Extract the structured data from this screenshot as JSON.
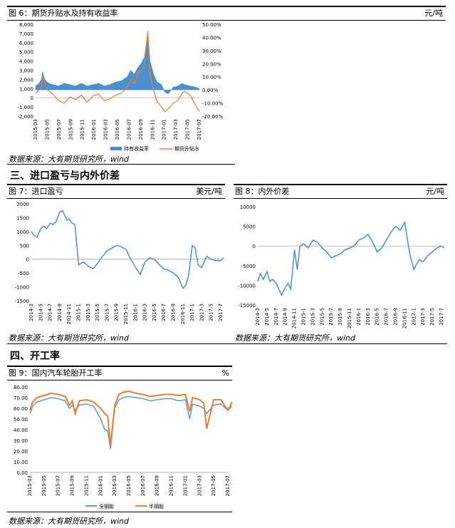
{
  "figure6": {
    "title": "图 6：期货升贴水及持有收益率",
    "unit": "元/吨",
    "source": "数据来源：大有期货研究所，wind",
    "chart_data": {
      "type": "area+line",
      "x_ticks": [
        "2015-03",
        "2015-05",
        "2015-07",
        "2015-09",
        "2015-11",
        "2016-01",
        "2016-03",
        "2016-05",
        "2016-07",
        "2016-09",
        "2016-11",
        "2017-01",
        "2017-03",
        "2017-05",
        "2017-07"
      ],
      "left_axis": {
        "ticks": [
          "8,000",
          "7,000",
          "6,000",
          "5,000",
          "4,000",
          "3,000",
          "2,000",
          "1,000",
          "0",
          "-1,000",
          "-2,000"
        ],
        "min": -2000,
        "max": 8000
      },
      "right_axis": {
        "ticks": [
          "50.00%",
          "40.00%",
          "30.00%",
          "20.00%",
          "10.00%",
          "0.00%",
          "-10.00%",
          "-20.00%"
        ],
        "min": -20,
        "max": 50
      },
      "series": [
        {
          "name": "持有收益率",
          "axis": "right",
          "color": "#4a90d0",
          "x": [
            0,
            0.3,
            0.5,
            0.6,
            0.8,
            1,
            1.2,
            1.5,
            2,
            2.5,
            3,
            3.5,
            4,
            4.5,
            5,
            5.5,
            6,
            6.5,
            7,
            7.5,
            8,
            8.3,
            8.6,
            9,
            9.2,
            9.5,
            9.8,
            10,
            10.3,
            10.6,
            11,
            11.3,
            11.6,
            12,
            12.4,
            12.8,
            13,
            13.5,
            14,
            14.3
          ],
          "values": [
            3,
            5,
            8,
            14,
            8,
            6,
            5,
            4,
            3,
            5,
            4,
            3,
            5,
            3,
            4,
            5,
            3,
            4,
            6,
            7,
            10,
            15,
            12,
            18,
            20,
            25,
            45,
            22,
            12,
            6,
            4,
            -2,
            -3,
            2,
            3,
            5,
            4,
            3,
            2,
            1
          ]
        },
        {
          "name": "期货升贴水",
          "axis": "left",
          "color": "#ed7d31",
          "x": [
            0,
            0.3,
            0.5,
            0.6,
            0.8,
            1,
            1.2,
            1.5,
            2,
            2.5,
            3,
            3.5,
            4,
            4.5,
            5,
            5.5,
            6,
            6.5,
            7,
            7.5,
            8,
            8.3,
            8.6,
            9,
            9.2,
            9.5,
            9.8,
            10,
            10.3,
            10.6,
            11,
            11.3,
            11.6,
            12,
            12.4,
            12.8,
            13,
            13.5,
            14,
            14.3
          ],
          "values": [
            500,
            800,
            1200,
            2500,
            1500,
            900,
            700,
            400,
            -300,
            -600,
            100,
            -200,
            300,
            -500,
            200,
            400,
            -300,
            -100,
            300,
            500,
            1200,
            2000,
            1500,
            2800,
            3000,
            3500,
            7200,
            2500,
            800,
            -400,
            -1000,
            -1500,
            -1200,
            -600,
            -300,
            500,
            700,
            300,
            -900,
            -1500
          ]
        }
      ]
    }
  },
  "section3": {
    "title": "三、进口盈亏与内外价差"
  },
  "figure7": {
    "title": "图 7：进口盈亏",
    "unit": "美元/吨",
    "source": "数据来源：大有期货研究所，wind",
    "chart_data": {
      "type": "line",
      "x_ticks": [
        "2014-3",
        "2014-5",
        "2014-7",
        "2014-9",
        "2014-11",
        "2015-1",
        "2015-3",
        "2015-5",
        "2015-7",
        "2015-9",
        "2015-11",
        "2016-1",
        "2016-3",
        "2016-5",
        "2016-7",
        "2016-9",
        "2016-11",
        "2017-1",
        "2017-3",
        "2017-5",
        "2017-7"
      ],
      "y_ticks": [
        "2000",
        "1500",
        "1000",
        "500",
        "0",
        "-500",
        "-1000",
        "-1500"
      ],
      "ylim": [
        -1500,
        2000
      ],
      "series": [
        {
          "color": "#4a90d0",
          "x": [
            0,
            0.3,
            0.6,
            1,
            1.3,
            1.6,
            2,
            2.3,
            2.6,
            3,
            3.3,
            3.5,
            3.8,
            4,
            4.3,
            4.6,
            5,
            5.5,
            6,
            6.5,
            7,
            7.5,
            8,
            8.5,
            9,
            9.5,
            10,
            10.5,
            11,
            11.5,
            12,
            12.5,
            13,
            13.5,
            14,
            14.5,
            15,
            15.5,
            16,
            16.3,
            16.6,
            17,
            17.3,
            17.6,
            18,
            18.5,
            19,
            19.5,
            20,
            20.3
          ],
          "values": [
            1000,
            850,
            800,
            1100,
            1200,
            1100,
            1300,
            1250,
            1350,
            1700,
            1750,
            1600,
            1400,
            1450,
            1300,
            1250,
            -200,
            -100,
            -250,
            -350,
            -150,
            100,
            300,
            400,
            500,
            450,
            350,
            0,
            -300,
            -550,
            -100,
            50,
            0,
            -200,
            -350,
            -400,
            -500,
            -650,
            -1050,
            -950,
            -600,
            500,
            400,
            -200,
            -300,
            100,
            0,
            -50,
            -50,
            50
          ]
        }
      ]
    }
  },
  "figure8": {
    "title": "图 8：内外价差",
    "unit": "元/吨",
    "source": "数据来源：大有期货研究所，wind",
    "chart_data": {
      "type": "line",
      "x_ticks": [
        "2014-3",
        "2014-5",
        "2014-7",
        "2014-9",
        "2014-11",
        "2015-1",
        "2015-3",
        "2015-5",
        "2015-7",
        "2015-9",
        "2015-11",
        "2016-1",
        "2016-3",
        "2016-5",
        "2016-7",
        "2016-9",
        "2016-11",
        "2017-1",
        "2017-3",
        "2017-5",
        "2017-7"
      ],
      "y_ticks": [
        "10000",
        "5000",
        "0",
        "-5000",
        "-10000",
        "-15000"
      ],
      "ylim": [
        -15000,
        10000
      ],
      "series": [
        {
          "color": "#4a90d0",
          "x": [
            0,
            0.3,
            0.6,
            1,
            1.3,
            1.6,
            2,
            2.3,
            2.6,
            3,
            3.3,
            3.6,
            4,
            4.3,
            4.6,
            5,
            5.5,
            6,
            6.5,
            7,
            7.5,
            8,
            8.5,
            9,
            9.5,
            10,
            10.5,
            11,
            11.5,
            12,
            12.5,
            13,
            13.5,
            14,
            14.5,
            15,
            15.5,
            16,
            16.3,
            16.6,
            17,
            17.3,
            17.6,
            18,
            18.5,
            19,
            19.5,
            20,
            20.3
          ],
          "values": [
            -9000,
            -7000,
            -8500,
            -6500,
            -9000,
            -8500,
            -9500,
            -11000,
            -12500,
            -10500,
            -9500,
            -11000,
            -1000,
            -6000,
            0,
            500,
            -500,
            1500,
            1000,
            -500,
            -1500,
            -3000,
            -2500,
            -2000,
            -1000,
            -500,
            0,
            1500,
            2000,
            3000,
            1000,
            -1500,
            -500,
            1500,
            3500,
            5000,
            4000,
            6000,
            1500,
            -2500,
            -6000,
            -4500,
            -3500,
            -4000,
            -2500,
            -1500,
            -500,
            0,
            -500
          ]
        }
      ]
    }
  },
  "section4": {
    "title": "四、开工率"
  },
  "figure9": {
    "title": "图 9：国内汽车轮胎开工率",
    "unit": "%",
    "source": "数据来源：大有期货研究所，wind",
    "chart_data": {
      "type": "line",
      "x_ticks": [
        "2015-03",
        "2015-05",
        "2015-07",
        "2015-09",
        "2015-11",
        "2016-01",
        "2016-03",
        "2016-05",
        "2016-07",
        "2016-09",
        "2016-11",
        "2017-01",
        "2017-03",
        "2017-05",
        "2017-07"
      ],
      "y_ticks": [
        "80.00",
        "70.00",
        "60.00",
        "50.00",
        "40.00",
        "30.00",
        "20.00",
        "10.00",
        "0.00"
      ],
      "ylim": [
        0,
        80
      ],
      "series": [
        {
          "name": "全钢胎",
          "color": "#5b9bd5",
          "x": [
            0,
            0.2,
            0.5,
            1,
            1.5,
            2,
            2.5,
            2.8,
            3,
            3.2,
            3.5,
            4,
            4.5,
            5,
            5.3,
            5.5,
            5.7,
            6,
            6.3,
            6.6,
            7,
            7.5,
            8,
            8.5,
            9,
            9.5,
            10,
            10.5,
            11,
            11.3,
            11.5,
            12,
            12.3,
            12.5,
            13,
            13.5,
            14,
            14.3
          ],
          "values": [
            55,
            62,
            66,
            68,
            70,
            69,
            67,
            60,
            63,
            58,
            63,
            64,
            62,
            50,
            40,
            39,
            22,
            60,
            68,
            70,
            71,
            70,
            69,
            67,
            68,
            69,
            69,
            67,
            68,
            50,
            64,
            62,
            60,
            55,
            63,
            64,
            58,
            62
          ]
        },
        {
          "name": "半钢胎",
          "color": "#ed7d31",
          "x": [
            0,
            0.2,
            0.5,
            1,
            1.5,
            2,
            2.5,
            2.8,
            3,
            3.2,
            3.5,
            4,
            4.5,
            5,
            5.3,
            5.5,
            5.7,
            6,
            6.3,
            6.6,
            7,
            7.5,
            8,
            8.5,
            9,
            9.5,
            10,
            10.5,
            11,
            11.3,
            11.5,
            12,
            12.3,
            12.5,
            13,
            13.5,
            14,
            14.3
          ],
          "values": [
            58,
            66,
            70,
            72,
            74,
            73,
            71,
            63,
            67,
            55,
            67,
            68,
            66,
            60,
            55,
            53,
            25,
            63,
            73,
            75,
            76,
            74,
            73,
            71,
            72,
            73,
            73,
            72,
            73,
            57,
            70,
            68,
            65,
            41,
            68,
            68,
            58,
            66
          ]
        }
      ]
    }
  }
}
